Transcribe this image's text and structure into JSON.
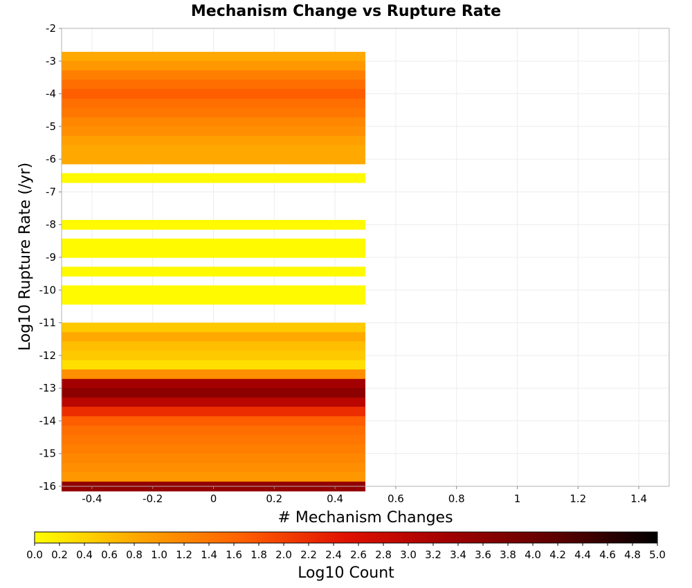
{
  "chart_data": {
    "type": "heatmap",
    "title": "Mechanism Change vs Rupture Rate",
    "xlabel": "# Mechanism Changes",
    "ylabel": "Log10 Rupture Rate (/yr)",
    "xlim": [
      -0.5,
      1.5
    ],
    "ylim": [
      -16,
      -2
    ],
    "x_ticks": [
      -0.4,
      -0.2,
      0,
      0.2,
      0.4,
      0.6,
      0.8,
      1,
      1.2,
      1.4
    ],
    "x_tick_labels": [
      "-0.4",
      "-0.2",
      "0",
      "0.2",
      "0.4",
      "0.6",
      "0.8",
      "1",
      "1.2",
      "1.4"
    ],
    "y_ticks": [
      -2,
      -3,
      -4,
      -5,
      -6,
      -7,
      -8,
      -9,
      -10,
      -11,
      -12,
      -13,
      -14,
      -15,
      -16
    ],
    "y_tick_labels": [
      "-2",
      "-3",
      "-4",
      "-5",
      "-6",
      "-7",
      "-8",
      "-9",
      "-10",
      "-11",
      "-12",
      "-13",
      "-14",
      "-15",
      "-16"
    ],
    "grid": true,
    "bin_x": [
      -0.5,
      0.5
    ],
    "bin_height": 0.286,
    "cells": [
      {
        "y": -2.86,
        "value": 0.8
      },
      {
        "y": -3.14,
        "value": 1.0
      },
      {
        "y": -3.43,
        "value": 1.3
      },
      {
        "y": -3.71,
        "value": 1.5
      },
      {
        "y": -4.0,
        "value": 1.7
      },
      {
        "y": -4.29,
        "value": 1.5
      },
      {
        "y": -4.57,
        "value": 1.4
      },
      {
        "y": -4.86,
        "value": 1.2
      },
      {
        "y": -5.14,
        "value": 1.1
      },
      {
        "y": -5.43,
        "value": 0.9
      },
      {
        "y": -5.71,
        "value": 0.8
      },
      {
        "y": -6.0,
        "value": 0.8
      },
      {
        "y": -6.57,
        "value": 0.05
      },
      {
        "y": -8.0,
        "value": 0.05
      },
      {
        "y": -8.57,
        "value": 0.05
      },
      {
        "y": -8.86,
        "value": 0.05
      },
      {
        "y": -9.43,
        "value": 0.05
      },
      {
        "y": -10.0,
        "value": 0.05
      },
      {
        "y": -10.29,
        "value": 0.05
      },
      {
        "y": -11.14,
        "value": 0.5
      },
      {
        "y": -11.43,
        "value": 0.8
      },
      {
        "y": -11.71,
        "value": 0.6
      },
      {
        "y": -12.0,
        "value": 0.5
      },
      {
        "y": -12.29,
        "value": 0.3
      },
      {
        "y": -12.57,
        "value": 1.1
      },
      {
        "y": -12.86,
        "value": 3.3
      },
      {
        "y": -13.14,
        "value": 3.6
      },
      {
        "y": -13.43,
        "value": 3.0
      },
      {
        "y": -13.71,
        "value": 2.2
      },
      {
        "y": -14.0,
        "value": 1.7
      },
      {
        "y": -14.29,
        "value": 1.5
      },
      {
        "y": -14.57,
        "value": 1.4
      },
      {
        "y": -14.86,
        "value": 1.3
      },
      {
        "y": -15.14,
        "value": 1.2
      },
      {
        "y": -15.43,
        "value": 1.1
      },
      {
        "y": -15.71,
        "value": 1.0
      },
      {
        "y": -16.0,
        "value": 3.5
      }
    ],
    "colorbar": {
      "label": "Log10 Count",
      "range": [
        0,
        5
      ],
      "ticks": [
        0.0,
        0.2,
        0.4,
        0.6,
        0.8,
        1.0,
        1.2,
        1.4,
        1.6,
        1.8,
        2.0,
        2.2,
        2.4,
        2.6,
        2.8,
        3.0,
        3.2,
        3.4,
        3.6,
        3.8,
        4.0,
        4.2,
        4.4,
        4.6,
        4.8,
        5.0
      ],
      "tick_labels": [
        "0.0",
        "0.2",
        "0.4",
        "0.6",
        "0.8",
        "1.0",
        "1.2",
        "1.4",
        "1.6",
        "1.8",
        "2.0",
        "2.2",
        "2.4",
        "2.6",
        "2.8",
        "3.0",
        "3.2",
        "3.4",
        "3.6",
        "3.8",
        "4.0",
        "4.2",
        "4.4",
        "4.6",
        "4.8",
        "5.0"
      ],
      "colors": [
        "#ffff00",
        "#ffa500",
        "#ff6000",
        "#e01000",
        "#a00000",
        "#600000",
        "#000000"
      ]
    }
  }
}
